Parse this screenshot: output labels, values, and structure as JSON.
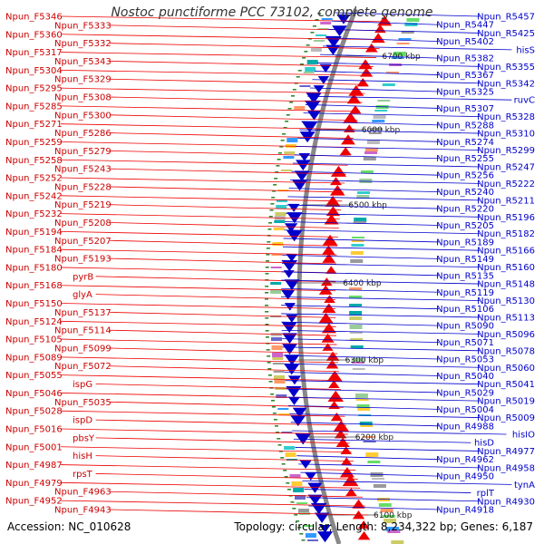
{
  "title": "Nostoc punctiforme PCC 73102, complete genome",
  "accession": "Accession: NC_010628",
  "summary": "Topology: circular; Length: 8,234,322 bp; Genes: 6,187",
  "colors": {
    "forward": "#ee0000",
    "reverse": "#0000cc",
    "backbone": "#888888",
    "tick": "#2e8b2e"
  },
  "kbp_labels": [
    "6700 kbp",
    "6600 kbp",
    "6500 kbp",
    "6400 kbp",
    "6300 kbp",
    "6200 kbp",
    "6100 kbp"
  ],
  "left_labels": [
    "Npun_F5346",
    "Npun_F5333",
    "Npun_F5360",
    "Npun_F5332",
    "Npun_F5317",
    "Npun_F5343",
    "Npun_F5304",
    "Npun_F5329",
    "Npun_F5295",
    "Npun_F5308",
    "Npun_F5285",
    "Npun_F5300",
    "Npun_F5271",
    "Npun_F5286",
    "Npun_F5259",
    "Npun_F5279",
    "Npun_F5258",
    "Npun_F5243",
    "Npun_F5252",
    "Npun_F5228",
    "Npun_F5242",
    "Npun_F5219",
    "Npun_F5232",
    "Npun_F5208",
    "Npun_F5194",
    "Npun_F5207",
    "Npun_F5184",
    "Npun_F5193",
    "Npun_F5180",
    "pyrB",
    "Npun_F5168",
    "glyA",
    "Npun_F5150",
    "Npun_F5137",
    "Npun_F5124",
    "Npun_F5114",
    "Npun_F5105",
    "Npun_F5099",
    "Npun_F5089",
    "Npun_F5072",
    "Npun_F5055",
    "ispG",
    "Npun_F5046",
    "Npun_F5035",
    "Npun_F5028",
    "ispD",
    "Npun_F5016",
    "pbsY",
    "Npun_F5001",
    "hisH",
    "Npun_F4987",
    "rpsT",
    "Npun_F4979",
    "Npun_F4963",
    "Npun_F4952",
    "Npun_F4943"
  ],
  "right_labels": [
    "Npun_R5457",
    "Npun_R5447",
    "Npun_R5425",
    "Npun_R5402",
    "hisS",
    "Npun_R5382",
    "Npun_R5355",
    "Npun_R5367",
    "Npun_R5342",
    "Npun_R5325",
    "ruvC",
    "Npun_R5307",
    "Npun_R5328",
    "Npun_R5288",
    "Npun_R5310",
    "Npun_R5274",
    "Npun_R5299",
    "Npun_R5255",
    "Npun_R5247",
    "Npun_R5256",
    "Npun_R5222",
    "Npun_R5240",
    "Npun_R5211",
    "Npun_R5220",
    "Npun_R5196",
    "Npun_R5205",
    "Npun_R5182",
    "Npun_R5189",
    "Npun_R5166",
    "Npun_R5149",
    "Npun_R5160",
    "Npun_R5135",
    "Npun_R5148",
    "Npun_R5119",
    "Npun_R5130",
    "Npun_R5106",
    "Npun_R5113",
    "Npun_R5090",
    "Npun_R5096",
    "Npun_R5071",
    "Npun_R5078",
    "Npun_R5053",
    "Npun_R5060",
    "Npun_R5040",
    "Npun_R5041",
    "Npun_R5029",
    "Npun_R5019",
    "Npun_R5004",
    "Npun_R5009",
    "Npun_R4988",
    "hisIO",
    "hisD",
    "Npun_R4977",
    "Npun_R4962",
    "Npun_R4958",
    "Npun_R4950",
    "tynA",
    "rplT",
    "Npun_R4930",
    "Npun_R4918"
  ]
}
